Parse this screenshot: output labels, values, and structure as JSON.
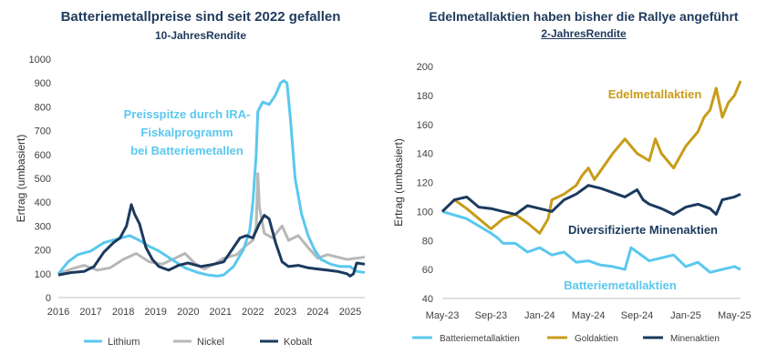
{
  "left": {
    "title": "Batteriemetallpreise sind seit 2022 gefallen",
    "subtitle": "10-JahresRendite"
  },
  "right": {
    "title": "Edelmetallaktien haben bisher die Rallye angeführt",
    "subtitle": "2-JahresRendite"
  },
  "chart_data": [
    {
      "type": "line",
      "title": "Batteriemetallpreise sind seit 2022 gefallen",
      "subtitle": "10-JahresRendite",
      "ylabel": "Ertrag (umbasiert)",
      "xlabel": "",
      "xlim": [
        2016,
        2025.45
      ],
      "ylim": [
        0,
        1000
      ],
      "yticks": [
        0,
        100,
        200,
        300,
        400,
        500,
        600,
        700,
        800,
        900,
        1000
      ],
      "xticks": [
        "2016",
        "2017",
        "2018",
        "2019",
        "2020",
        "2021",
        "2022",
        "2023",
        "2024",
        "2025"
      ],
      "grid": false,
      "legend_position": "bottom",
      "annotation": [
        "Preisspitze durch IRA-",
        "Fiskalprogramm",
        "bei Batteriemetallen"
      ],
      "series": [
        {
          "name": "Lithium",
          "color": "#5bc8ee",
          "x": [
            2016,
            2016.3,
            2016.6,
            2017,
            2017.4,
            2017.8,
            2018.2,
            2018.5,
            2018.8,
            2019.1,
            2019.5,
            2019.9,
            2020.3,
            2020.6,
            2020.9,
            2021.1,
            2021.4,
            2021.7,
            2021.9,
            2022.0,
            2022.1,
            2022.15,
            2022.3,
            2022.5,
            2022.7,
            2022.85,
            2022.95,
            2023.05,
            2023.15,
            2023.3,
            2023.5,
            2023.7,
            2023.9,
            2024.1,
            2024.4,
            2024.7,
            2025.0,
            2025.2,
            2025.45
          ],
          "y": [
            100,
            150,
            180,
            195,
            230,
            245,
            260,
            240,
            215,
            195,
            160,
            125,
            105,
            95,
            90,
            95,
            130,
            200,
            280,
            400,
            600,
            780,
            820,
            810,
            850,
            900,
            910,
            900,
            760,
            500,
            350,
            260,
            200,
            160,
            140,
            130,
            130,
            110,
            105
          ]
        },
        {
          "name": "Nickel",
          "color": "#b8b8b8",
          "x": [
            2016,
            2016.4,
            2016.8,
            2017.2,
            2017.6,
            2018.0,
            2018.4,
            2018.8,
            2019.2,
            2019.6,
            2019.9,
            2020.2,
            2020.5,
            2020.8,
            2021.1,
            2021.5,
            2021.8,
            2022.0,
            2022.1,
            2022.15,
            2022.2,
            2022.35,
            2022.6,
            2022.9,
            2023.1,
            2023.4,
            2023.7,
            2024.0,
            2024.3,
            2024.6,
            2024.9,
            2025.2,
            2025.45
          ],
          "y": [
            100,
            120,
            135,
            115,
            125,
            160,
            185,
            150,
            140,
            165,
            185,
            145,
            120,
            140,
            165,
            180,
            220,
            240,
            300,
            520,
            380,
            270,
            250,
            300,
            240,
            260,
            210,
            165,
            180,
            170,
            160,
            165,
            170
          ]
        },
        {
          "name": "Kobalt",
          "color": "#1b3a5e",
          "x": [
            2016,
            2016.4,
            2016.8,
            2017.1,
            2017.4,
            2017.7,
            2017.9,
            2018.1,
            2018.25,
            2018.35,
            2018.5,
            2018.7,
            2018.9,
            2019.1,
            2019.4,
            2019.7,
            2020.0,
            2020.4,
            2020.8,
            2021.1,
            2021.4,
            2021.6,
            2021.8,
            2022.0,
            2022.2,
            2022.35,
            2022.5,
            2022.7,
            2022.9,
            2023.1,
            2023.4,
            2023.7,
            2024.0,
            2024.3,
            2024.6,
            2024.9,
            2025.0,
            2025.1,
            2025.2,
            2025.45
          ],
          "y": [
            95,
            105,
            110,
            130,
            190,
            230,
            250,
            300,
            390,
            350,
            310,
            210,
            160,
            130,
            115,
            135,
            145,
            130,
            140,
            150,
            210,
            250,
            260,
            250,
            310,
            345,
            330,
            230,
            150,
            130,
            135,
            125,
            120,
            115,
            110,
            100,
            90,
            100,
            145,
            140
          ]
        }
      ]
    },
    {
      "type": "line",
      "title": "Edelmetallaktien haben bisher die Rallye angeführt",
      "subtitle": "2-JahresRendite",
      "ylabel": "Ertrag (umbasiert)",
      "xlabel": "",
      "ylim": [
        40,
        200
      ],
      "yticks": [
        40,
        60,
        80,
        100,
        120,
        140,
        160,
        180,
        200
      ],
      "xticks": [
        "May-23",
        "Sep-23",
        "Jan-24",
        "May-24",
        "Sep-24",
        "Jan-25",
        "May-25"
      ],
      "grid": false,
      "legend_position": "bottom",
      "annotations": [
        "Edelmetallaktien",
        "Diversifizierte Minenaktien",
        "Batteriemetallaktien"
      ],
      "series": [
        {
          "name": "Batteriemetallaktien",
          "color": "#5bc8ee",
          "x": [
            0,
            2,
            3,
            4,
            4.5,
            5,
            6,
            7,
            8,
            9,
            10,
            11,
            12,
            13,
            14,
            15,
            15.5,
            16,
            17,
            18,
            19,
            20,
            21,
            22,
            23,
            24,
            24.5
          ],
          "y": [
            100,
            95,
            90,
            85,
            82,
            78,
            78,
            72,
            75,
            70,
            72,
            65,
            66,
            63,
            62,
            60,
            75,
            72,
            66,
            68,
            70,
            62,
            65,
            58,
            60,
            62,
            60
          ]
        },
        {
          "name": "Goldaktien",
          "color": "#c89c1a",
          "x": [
            0,
            1,
            2,
            3,
            4,
            5,
            6,
            7,
            8,
            8.7,
            9,
            10,
            11,
            11.5,
            12,
            12.5,
            13,
            14,
            15,
            16,
            17,
            17.5,
            18,
            19,
            20,
            21,
            21.5,
            22,
            22.5,
            23,
            23.5,
            24,
            24.5
          ],
          "y": [
            100,
            108,
            102,
            95,
            88,
            95,
            98,
            92,
            85,
            95,
            108,
            112,
            118,
            125,
            130,
            122,
            128,
            140,
            150,
            140,
            135,
            150,
            140,
            130,
            145,
            155,
            165,
            170,
            185,
            165,
            175,
            180,
            190
          ]
        },
        {
          "name": "Minenaktien",
          "color": "#1b3a5e",
          "x": [
            0,
            1,
            2,
            3,
            4,
            5,
            6,
            7,
            8,
            9,
            10,
            11,
            12,
            13,
            14,
            15,
            16,
            16.5,
            17,
            18,
            18.5,
            19,
            20,
            21,
            22,
            22.5,
            23,
            24,
            24.5
          ],
          "y": [
            100,
            108,
            110,
            103,
            102,
            100,
            98,
            104,
            102,
            100,
            108,
            112,
            118,
            116,
            113,
            110,
            115,
            108,
            105,
            102,
            100,
            98,
            103,
            105,
            102,
            98,
            108,
            110,
            112
          ]
        }
      ]
    }
  ]
}
